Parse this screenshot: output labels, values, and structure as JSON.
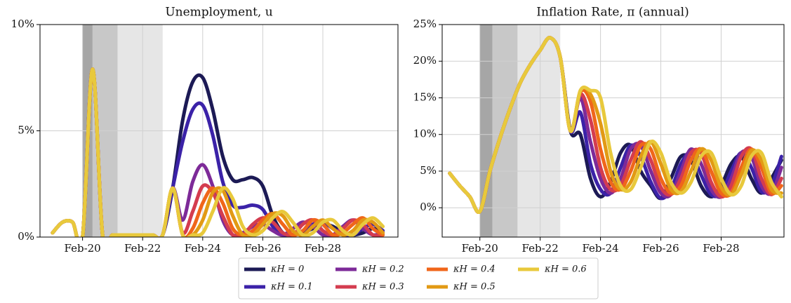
{
  "chart_data": [
    {
      "type": "line",
      "title": "Unemployment, u",
      "x": [
        "2019-02",
        "2019-06",
        "2019-10",
        "2020-02",
        "2020-06",
        "2020-10",
        "2021-02",
        "2021-06",
        "2021-10",
        "2022-02",
        "2022-06",
        "2022-10",
        "2023-02",
        "2023-06",
        "2023-10",
        "2024-02",
        "2024-06",
        "2024-10",
        "2025-02",
        "2025-06",
        "2025-10",
        "2026-02",
        "2026-06",
        "2026-10",
        "2027-02",
        "2027-06",
        "2027-10",
        "2028-02",
        "2028-06",
        "2028-10",
        "2029-02",
        "2029-06",
        "2029-10",
        "2030-02"
      ],
      "xlim": [
        "2018-09",
        "2030-08"
      ],
      "xticks": [
        {
          "value": "2020-02",
          "label": "Feb-20"
        },
        {
          "value": "2022-02",
          "label": "Feb-22"
        },
        {
          "value": "2024-02",
          "label": "Feb-24"
        },
        {
          "value": "2026-02",
          "label": "Feb-26"
        },
        {
          "value": "2028-02",
          "label": "Feb-28"
        }
      ],
      "ylim": [
        0,
        10
      ],
      "yticks": [
        {
          "value": 0,
          "label": "0%"
        },
        {
          "value": 5,
          "label": "5%"
        },
        {
          "value": 10,
          "label": "10%"
        }
      ],
      "grid": true,
      "legend": "bottom",
      "shaded": [
        {
          "start": "2020-02",
          "end": "2020-06",
          "color": "#a6a6a6"
        },
        {
          "start": "2020-06",
          "end": "2021-04",
          "color": "#c8c8c8"
        },
        {
          "start": "2021-04",
          "end": "2022-10",
          "color": "#e6e6e6"
        }
      ],
      "series": [
        {
          "name": "κH = 0",
          "color": "#1c1a55",
          "values": [
            0.2,
            0.7,
            0.7,
            0.0,
            7.9,
            0.1,
            0.1,
            0.1,
            0.1,
            0.1,
            0.1,
            0.1,
            2.3,
            5.5,
            7.3,
            7.5,
            6.0,
            3.8,
            2.7,
            2.7,
            2.8,
            2.4,
            1.0,
            0.2,
            0.1,
            0.2,
            0.4,
            0.6,
            0.5,
            0.2,
            0.1,
            0.2,
            0.4,
            0.2
          ]
        },
        {
          "name": "κH = 0.1",
          "color": "#3b22a8",
          "values": [
            0.2,
            0.7,
            0.7,
            0.0,
            7.9,
            0.1,
            0.1,
            0.1,
            0.1,
            0.1,
            0.1,
            0.1,
            2.3,
            4.5,
            6.0,
            6.2,
            4.8,
            2.6,
            1.5,
            1.4,
            1.5,
            1.3,
            0.5,
            0.1,
            0.1,
            0.3,
            0.6,
            0.7,
            0.4,
            0.1,
            0.1,
            0.4,
            0.6,
            0.3
          ]
        },
        {
          "name": "κH = 0.2",
          "color": "#7d2a98",
          "values": [
            0.2,
            0.7,
            0.7,
            0.0,
            7.9,
            0.1,
            0.1,
            0.1,
            0.1,
            0.1,
            0.1,
            0.1,
            2.3,
            0.8,
            2.6,
            3.4,
            2.4,
            0.8,
            0.1,
            0.2,
            0.5,
            0.6,
            0.3,
            0.1,
            0.4,
            0.7,
            0.5,
            0.1,
            0.1,
            0.5,
            0.8,
            0.4,
            0.1,
            0.2
          ]
        },
        {
          "name": "κH = 0.3",
          "color": "#d43c4f",
          "values": [
            0.2,
            0.7,
            0.7,
            0.0,
            7.9,
            0.1,
            0.1,
            0.1,
            0.1,
            0.1,
            0.1,
            0.1,
            2.3,
            0.2,
            1.2,
            2.4,
            2.1,
            1.0,
            0.1,
            0.1,
            0.6,
            0.9,
            0.7,
            0.2,
            0.1,
            0.6,
            0.8,
            0.3,
            0.1,
            0.4,
            0.8,
            0.6,
            0.1,
            0.1
          ]
        },
        {
          "name": "κH = 0.4",
          "color": "#f0661a",
          "values": [
            0.2,
            0.7,
            0.7,
            0.0,
            7.9,
            0.1,
            0.1,
            0.1,
            0.1,
            0.1,
            0.1,
            0.1,
            2.3,
            0.1,
            0.4,
            1.6,
            2.3,
            1.6,
            0.4,
            0.1,
            0.3,
            0.8,
            1.1,
            0.6,
            0.1,
            0.3,
            0.8,
            0.6,
            0.1,
            0.2,
            0.6,
            0.9,
            0.4,
            0.1
          ]
        },
        {
          "name": "κH = 0.5",
          "color": "#e29a14",
          "values": [
            0.2,
            0.7,
            0.7,
            0.0,
            7.9,
            0.1,
            0.1,
            0.1,
            0.1,
            0.1,
            0.1,
            0.1,
            2.3,
            0.1,
            0.1,
            0.8,
            2.1,
            2.2,
            1.0,
            0.1,
            0.1,
            0.6,
            1.1,
            1.0,
            0.3,
            0.1,
            0.5,
            0.8,
            0.4,
            0.1,
            0.3,
            0.8,
            0.7,
            0.2
          ]
        },
        {
          "name": "κH = 0.6",
          "color": "#e8c93c",
          "values": [
            0.2,
            0.7,
            0.7,
            0.0,
            7.9,
            0.1,
            0.1,
            0.1,
            0.1,
            0.1,
            0.1,
            0.1,
            2.3,
            0.1,
            0.1,
            0.2,
            1.2,
            2.3,
            1.8,
            0.5,
            0.1,
            0.3,
            0.9,
            1.2,
            0.7,
            0.1,
            0.2,
            0.7,
            0.8,
            0.3,
            0.1,
            0.6,
            0.9,
            0.5
          ]
        }
      ]
    },
    {
      "type": "line",
      "title": "Inflation Rate, π (annual)",
      "x": [
        "2019-02",
        "2019-06",
        "2019-10",
        "2020-02",
        "2020-06",
        "2020-10",
        "2021-02",
        "2021-06",
        "2021-10",
        "2022-02",
        "2022-06",
        "2022-10",
        "2023-02",
        "2023-06",
        "2023-10",
        "2024-02",
        "2024-06",
        "2024-10",
        "2025-02",
        "2025-06",
        "2025-10",
        "2026-02",
        "2026-06",
        "2026-10",
        "2027-02",
        "2027-06",
        "2027-10",
        "2028-02",
        "2028-06",
        "2028-10",
        "2029-02",
        "2029-06",
        "2029-10",
        "2030-02"
      ],
      "xlim": [
        "2018-11",
        "2030-03"
      ],
      "xticks": [
        {
          "value": "2020-02",
          "label": "Feb-20"
        },
        {
          "value": "2022-02",
          "label": "Feb-22"
        },
        {
          "value": "2024-02",
          "label": "Feb-24"
        },
        {
          "value": "2026-02",
          "label": "Feb-26"
        },
        {
          "value": "2028-02",
          "label": "Feb-28"
        }
      ],
      "ylim": [
        -4,
        25
      ],
      "yticks": [
        {
          "value": 0,
          "label": "0%"
        },
        {
          "value": 5,
          "label": "5%"
        },
        {
          "value": 10,
          "label": "10%"
        },
        {
          "value": 15,
          "label": "15%"
        },
        {
          "value": 20,
          "label": "20%"
        },
        {
          "value": 25,
          "label": "25%"
        }
      ],
      "grid": true,
      "shaded": [
        {
          "start": "2020-02",
          "end": "2020-07",
          "color": "#a6a6a6"
        },
        {
          "start": "2020-07",
          "end": "2021-05",
          "color": "#c8c8c8"
        },
        {
          "start": "2021-05",
          "end": "2022-10",
          "color": "#e6e6e6"
        }
      ],
      "series": [
        {
          "color": "#1c1a55",
          "values": [
            4.7,
            3.0,
            1.5,
            -0.5,
            5.0,
            9.5,
            13.5,
            17.0,
            19.5,
            21.5,
            23.2,
            20.5,
            10.5,
            10,
            4,
            1.5,
            3.5,
            7.5,
            8.5,
            5,
            3,
            1.3,
            4,
            7,
            6.5,
            3,
            1.5,
            3,
            6,
            7,
            4,
            2,
            4,
            6.5
          ]
        },
        {
          "color": "#3b22a8",
          "values": [
            4.7,
            3.0,
            1.5,
            -0.5,
            5.0,
            9.5,
            13.5,
            17.0,
            19.5,
            21.5,
            23.2,
            20.5,
            10.5,
            13,
            6,
            2.5,
            2,
            5.5,
            8.5,
            7,
            3.5,
            1.3,
            2.5,
            6,
            7.5,
            4.5,
            1.8,
            2,
            5,
            7.5,
            5.5,
            2.2,
            3,
            7
          ]
        },
        {
          "color": "#7d2a98",
          "values": [
            4.7,
            3.0,
            1.5,
            -0.5,
            5.0,
            9.5,
            13.5,
            17.0,
            19.5,
            21.5,
            23.2,
            20.5,
            10.5,
            15,
            9,
            4,
            2,
            4,
            8,
            8.5,
            5,
            2,
            1.8,
            5,
            8,
            6,
            2.5,
            1.5,
            4,
            7.5,
            7,
            3,
            2,
            5.5
          ]
        },
        {
          "color": "#d43c4f",
          "values": [
            4.7,
            3.0,
            1.5,
            -0.5,
            5.0,
            9.5,
            13.5,
            17.0,
            19.5,
            21.5,
            23.2,
            20.5,
            10.5,
            15.5,
            12,
            5.5,
            2.5,
            3,
            6.5,
            9,
            6.5,
            2.8,
            1.8,
            4,
            7.5,
            7.5,
            3.5,
            1.5,
            3,
            7,
            8,
            4,
            1.8,
            4
          ]
        },
        {
          "color": "#f0661a",
          "values": [
            4.7,
            3.0,
            1.5,
            -0.5,
            5.0,
            9.5,
            13.5,
            17.0,
            19.5,
            21.5,
            23.2,
            20.5,
            10.5,
            15.8,
            14.5,
            8,
            3.5,
            2.5,
            5,
            8.5,
            8,
            4,
            2,
            3,
            6.5,
            8,
            5,
            2,
            2,
            5.5,
            8,
            5.5,
            2,
            3
          ]
        },
        {
          "color": "#e29a14",
          "values": [
            4.7,
            3.0,
            1.5,
            -0.5,
            5.0,
            9.5,
            13.5,
            17.0,
            19.5,
            21.5,
            23.2,
            20.5,
            10.5,
            16,
            15.5,
            11.5,
            5,
            2.5,
            3.5,
            7,
            9,
            6,
            2.5,
            2.2,
            5,
            8,
            6.5,
            2.8,
            1.8,
            4.5,
            7.8,
            6.5,
            2.5,
            2
          ]
        },
        {
          "color": "#e8c93c",
          "values": [
            4.7,
            3.0,
            1.5,
            -0.5,
            5.0,
            9.5,
            13.5,
            17.0,
            19.5,
            21.5,
            23.2,
            20.5,
            10.5,
            16,
            16,
            15,
            7.5,
            3,
            2.5,
            5.5,
            9,
            7.5,
            3.5,
            2,
            3.5,
            7,
            7.5,
            4,
            1.8,
            3,
            7,
            7.5,
            3.5,
            1.5
          ]
        }
      ]
    }
  ]
}
